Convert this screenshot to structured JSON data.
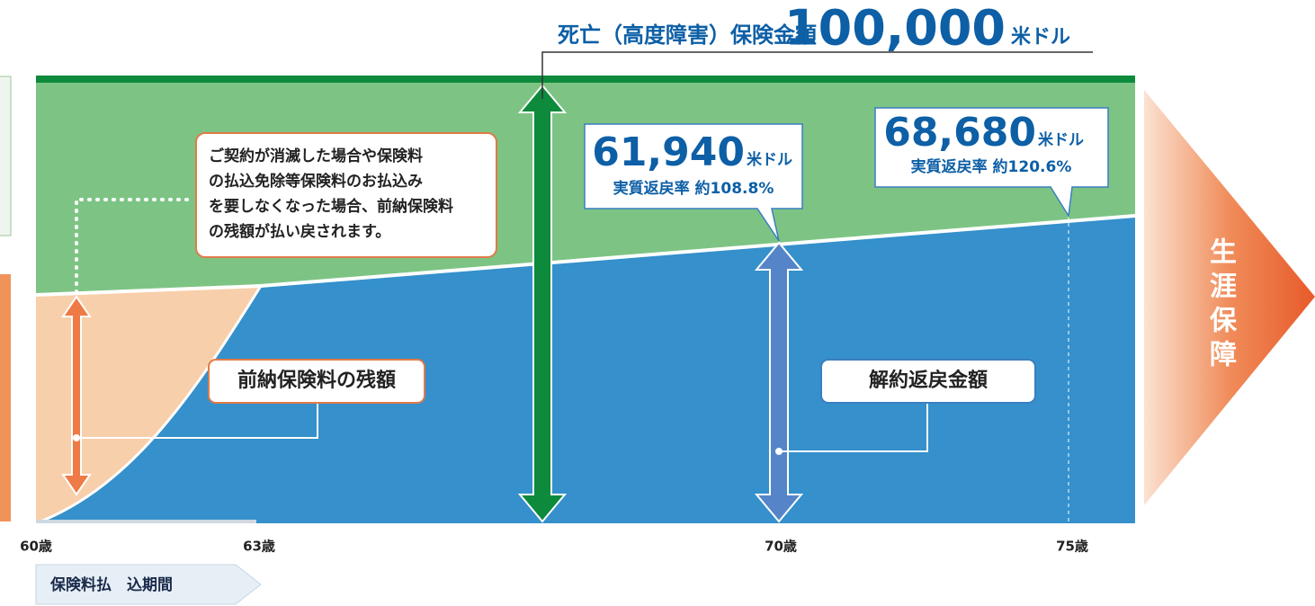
{
  "header": {
    "label": "死亡（高度障害）保険金額",
    "amount": "100,000",
    "unit": "米ドル"
  },
  "note": {
    "lines": [
      "ご契約が消滅した場合や保険料",
      "の払込免除等保険料のお払込み",
      "を要しなくなった場合、前納保険料",
      "の残額が払い戻されます。"
    ]
  },
  "callouts": [
    {
      "amount": "61,940",
      "unit": "米ドル",
      "rate": "実質返戻率 約108.8%"
    },
    {
      "amount": "68,680",
      "unit": "米ドル",
      "rate": "実質返戻率 約120.6%"
    }
  ],
  "labels": {
    "prepaid": "前納保険料の残額",
    "surrender": "解約返戻金額",
    "lifetime": "生涯保障"
  },
  "ages": [
    "60歳",
    "63歳",
    "70歳",
    "75歳"
  ],
  "period": "保険料払　込期間"
}
